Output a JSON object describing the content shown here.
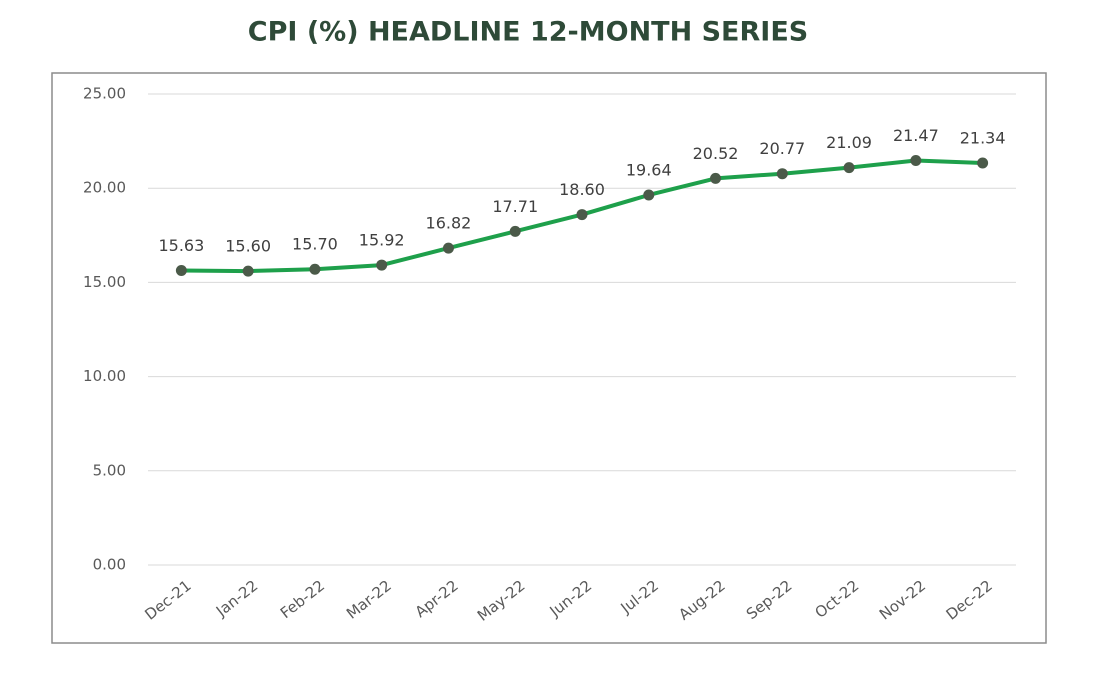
{
  "chart_data": {
    "type": "line",
    "title": "CPI (%)  HEADLINE 12-MONTH SERIES",
    "categories": [
      "Dec-21",
      "Jan-22",
      "Feb-22",
      "Mar-22",
      "Apr-22",
      "May-22",
      "Jun-22",
      "Jul-22",
      "Aug-22",
      "Sep-22",
      "Oct-22",
      "Nov-22",
      "Dec-22"
    ],
    "values": [
      15.63,
      15.6,
      15.7,
      15.92,
      16.82,
      17.71,
      18.6,
      19.64,
      20.52,
      20.77,
      21.09,
      21.47,
      21.34
    ],
    "value_labels": [
      "15.63",
      "15.60",
      "15.70",
      "15.92",
      "16.82",
      "17.71",
      "18.60",
      "19.64",
      "20.52",
      "20.77",
      "21.09",
      "21.47",
      "21.34"
    ],
    "color": "#1ea04b",
    "marker_color": "#4b5a49",
    "ylim": [
      0,
      25
    ],
    "yticks": [
      {
        "value": 0,
        "label": "0.00"
      },
      {
        "value": 5,
        "label": "5.00"
      },
      {
        "value": 10,
        "label": "10.00"
      },
      {
        "value": 15,
        "label": "15.00"
      },
      {
        "value": 20,
        "label": "20.00"
      },
      {
        "value": 25,
        "label": "25.00"
      }
    ],
    "grid": true
  }
}
